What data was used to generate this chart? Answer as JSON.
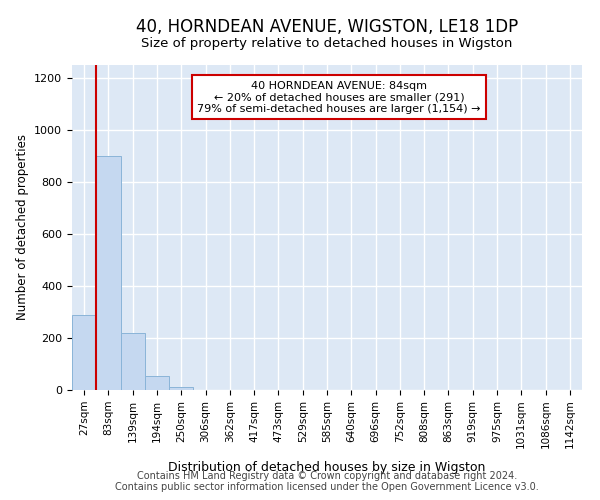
{
  "title": "40, HORNDEAN AVENUE, WIGSTON, LE18 1DP",
  "subtitle": "Size of property relative to detached houses in Wigston",
  "xlabel": "Distribution of detached houses by size in Wigston",
  "ylabel": "Number of detached properties",
  "categories": [
    "27sqm",
    "83sqm",
    "139sqm",
    "194sqm",
    "250sqm",
    "306sqm",
    "362sqm",
    "417sqm",
    "473sqm",
    "529sqm",
    "585sqm",
    "640sqm",
    "696sqm",
    "752sqm",
    "808sqm",
    "863sqm",
    "919sqm",
    "975sqm",
    "1031sqm",
    "1086sqm",
    "1142sqm"
  ],
  "values": [
    290,
    900,
    220,
    55,
    10,
    0,
    0,
    0,
    0,
    0,
    0,
    0,
    0,
    0,
    0,
    0,
    0,
    0,
    0,
    0,
    0
  ],
  "bar_color": "#c5d8f0",
  "bar_edge_color": "#8ab4d8",
  "plot_bg_color": "#dde8f5",
  "grid_color": "#ffffff",
  "annotation_text": "40 HORNDEAN AVENUE: 84sqm\n← 20% of detached houses are smaller (291)\n79% of semi-detached houses are larger (1,154) →",
  "annotation_box_edgecolor": "#cc0000",
  "vline_color": "#cc0000",
  "vline_x_idx": 1,
  "ylim": [
    0,
    1250
  ],
  "yticks": [
    0,
    200,
    400,
    600,
    800,
    1000,
    1200
  ],
  "footer_line1": "Contains HM Land Registry data © Crown copyright and database right 2024.",
  "footer_line2": "Contains public sector information licensed under the Open Government Licence v3.0."
}
